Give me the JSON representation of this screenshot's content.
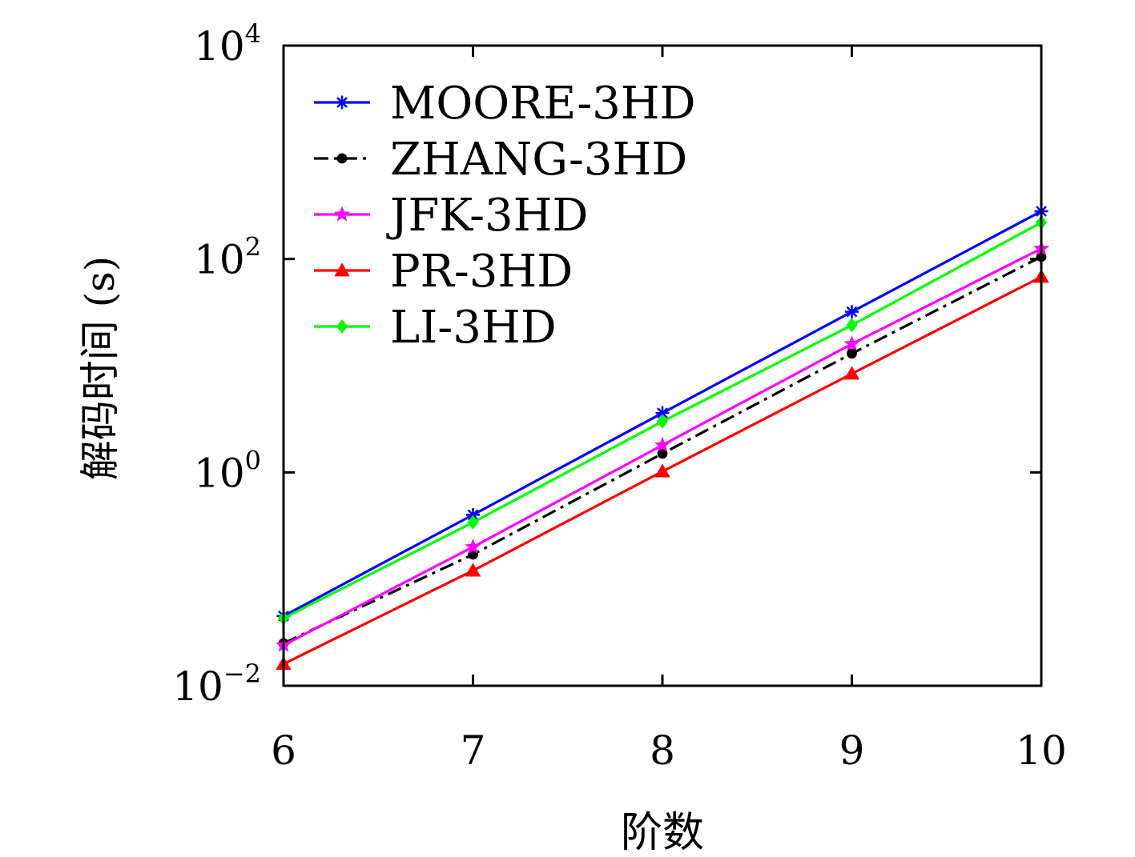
{
  "chart_data": {
    "type": "line",
    "title": "",
    "xlabel": "阶数",
    "ylabel": "解码时间 (s)",
    "x": [
      6,
      7,
      8,
      9,
      10
    ],
    "x_ticks": [
      "6",
      "7",
      "8",
      "9",
      "10"
    ],
    "xlim": [
      6,
      10
    ],
    "y_scale": "log",
    "ylim": [
      0.01,
      10000
    ],
    "y_ticks": [
      {
        "base": "10",
        "exp": "4"
      },
      {
        "base": "10",
        "exp": "2"
      },
      {
        "base": "10",
        "exp": "0"
      },
      {
        "base": "10",
        "exp": "−2"
      }
    ],
    "legend_position": "top-left",
    "grid": false,
    "series": [
      {
        "name": "MOORE-3HD",
        "color": "#0000ff",
        "dash": "solid",
        "marker": "asterisk",
        "values": [
          0.045,
          0.4,
          3.6,
          32,
          280
        ]
      },
      {
        "name": "ZHANG-3HD",
        "color": "#000000",
        "dash": "dashdot",
        "marker": "dot",
        "values": [
          0.025,
          0.17,
          1.5,
          13,
          105
        ]
      },
      {
        "name": "JFK-3HD",
        "color": "#ff00ff",
        "dash": "solid",
        "marker": "star",
        "values": [
          0.024,
          0.2,
          1.8,
          16,
          125
        ]
      },
      {
        "name": "PR-3HD",
        "color": "#ff0000",
        "dash": "solid",
        "marker": "triangle",
        "values": [
          0.016,
          0.12,
          1.02,
          8.4,
          68
        ]
      },
      {
        "name": "LI-3HD",
        "color": "#00ff00",
        "dash": "solid",
        "marker": "diamond",
        "values": [
          0.043,
          0.34,
          3.0,
          24,
          220
        ]
      }
    ]
  }
}
